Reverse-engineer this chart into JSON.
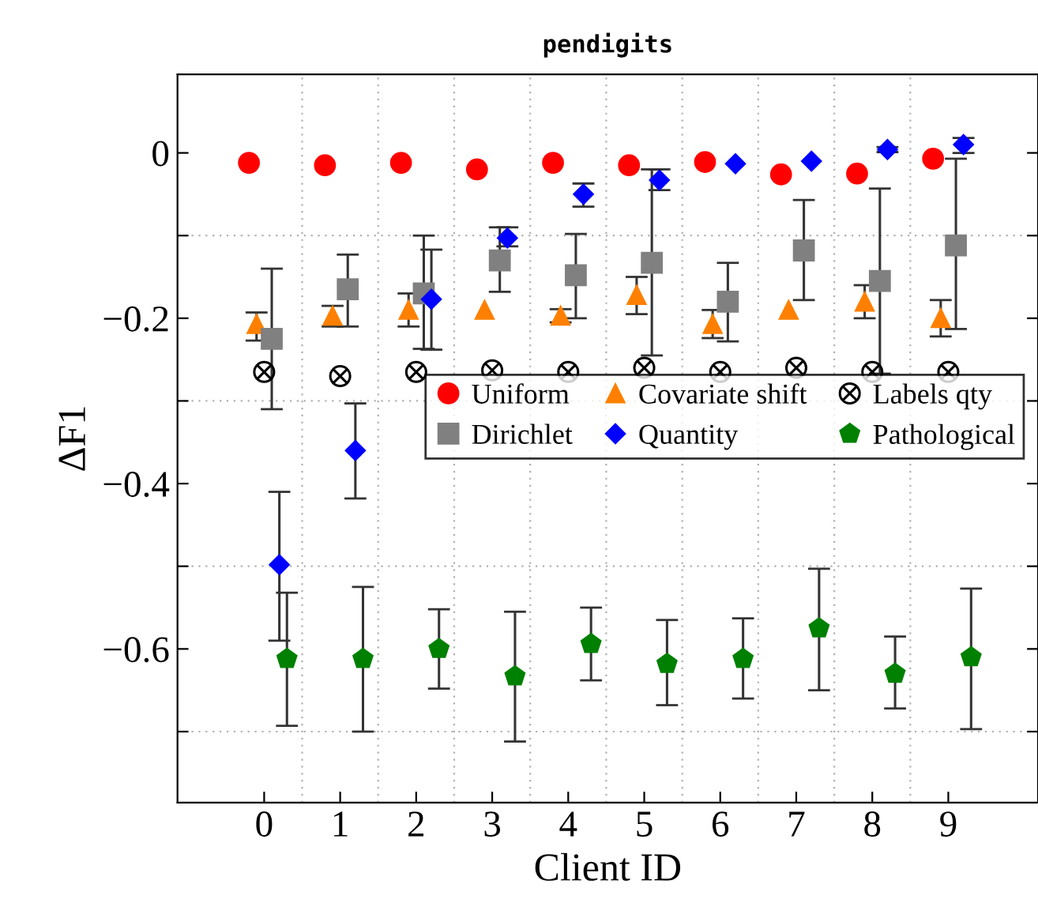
{
  "chart_data": {
    "type": "scatter",
    "title": "pendigits",
    "xlabel": "Client ID",
    "ylabel": "ΔF1",
    "xlim": [
      -1.14,
      10.18
    ],
    "ylim": [
      -0.786,
      0.095
    ],
    "xticks": [
      0,
      1,
      2,
      3,
      4,
      5,
      6,
      7,
      8,
      9,
      {
        "value": 0.5,
        "label": null
      },
      {
        "value": 1.5,
        "label": null
      },
      {
        "value": 2.5,
        "label": null
      },
      {
        "value": 3.5,
        "label": null
      },
      {
        "value": 4.5,
        "label": null
      },
      {
        "value": 5.5,
        "label": null
      },
      {
        "value": 6.5,
        "label": null
      },
      {
        "value": 7.5,
        "label": null
      },
      {
        "value": 8.5,
        "label": null
      }
    ],
    "yticks": [
      {
        "value": 0,
        "label": "0"
      },
      {
        "value": -0.2,
        "label": "−0.2"
      },
      {
        "value": -0.4,
        "label": "−0.4"
      },
      {
        "value": -0.6,
        "label": "−0.6"
      },
      {
        "value": -0.1,
        "label": null
      },
      {
        "value": -0.3,
        "label": null
      },
      {
        "value": -0.5,
        "label": null
      },
      {
        "value": -0.7,
        "label": null
      }
    ],
    "grid": true,
    "legend": "right",
    "series": [
      {
        "name": "Uniform",
        "color": "#ff0000",
        "marker": "circle",
        "x": [
          -0.2,
          0.8,
          1.8,
          2.8,
          3.8,
          4.8,
          5.8,
          6.8,
          7.8,
          8.8
        ],
        "values": [
          -0.012,
          -0.015,
          -0.012,
          -0.02,
          -0.012,
          -0.015,
          -0.011,
          -0.026,
          -0.025,
          -0.007
        ]
      },
      {
        "name": "Covariate shift",
        "color": "#ff8000",
        "marker": "triangle",
        "x": [
          -0.1,
          0.9,
          1.9,
          2.9,
          3.9,
          4.9,
          5.9,
          6.9,
          7.9,
          8.9
        ],
        "values": [
          -0.207,
          -0.197,
          -0.19,
          -0.19,
          -0.197,
          -0.172,
          -0.207,
          -0.19,
          -0.18,
          -0.2
        ],
        "errors": [
          [
            -0.227,
            -0.193
          ],
          [
            -0.21,
            -0.185
          ],
          [
            -0.21,
            -0.17
          ],
          null,
          [
            -0.205,
            -0.189
          ],
          [
            -0.195,
            -0.15
          ],
          [
            -0.224,
            -0.19
          ],
          null,
          [
            -0.2,
            -0.16
          ],
          [
            -0.222,
            -0.178
          ]
        ]
      },
      {
        "name": "Labels qty",
        "color": "#000000",
        "marker": "cross",
        "x": [
          0,
          1,
          2,
          3,
          4,
          5,
          6,
          7,
          8,
          9
        ],
        "values": [
          -0.265,
          -0.27,
          -0.265,
          -0.263,
          -0.265,
          -0.26,
          -0.265,
          -0.26,
          -0.265,
          -0.265
        ]
      },
      {
        "name": "Dirichlet",
        "color": "#808080",
        "marker": "square",
        "x": [
          0.1,
          1.1,
          2.1,
          3.1,
          4.1,
          5.1,
          6.1,
          7.1,
          8.1,
          9.1
        ],
        "values": [
          -0.225,
          -0.165,
          -0.17,
          -0.13,
          -0.148,
          -0.133,
          -0.18,
          -0.118,
          -0.155,
          -0.112
        ],
        "errors": [
          [
            -0.31,
            -0.14
          ],
          [
            -0.21,
            -0.123
          ],
          [
            -0.237,
            -0.1
          ],
          [
            -0.168,
            -0.09
          ],
          [
            -0.2,
            -0.098
          ],
          [
            -0.245,
            -0.02
          ],
          [
            -0.228,
            -0.133
          ],
          [
            -0.178,
            -0.057
          ],
          [
            -0.267,
            -0.043
          ],
          [
            -0.213,
            -0.007
          ]
        ]
      },
      {
        "name": "Quantity",
        "color": "#0000ff",
        "marker": "diamond",
        "x": [
          0.2,
          1.2,
          2.2,
          3.2,
          4.2,
          5.2,
          6.2,
          7.2,
          8.2,
          9.2
        ],
        "values": [
          -0.498,
          -0.36,
          -0.177,
          -0.103,
          -0.05,
          -0.033,
          -0.013,
          -0.01,
          0.004,
          0.01
        ],
        "errors": [
          [
            -0.59,
            -0.41
          ],
          [
            -0.418,
            -0.303
          ],
          [
            -0.238,
            -0.117
          ],
          [
            -0.113,
            -0.09
          ],
          [
            -0.065,
            -0.037
          ],
          [
            -0.045,
            -0.02
          ],
          null,
          null,
          [
            0.001,
            0.007
          ],
          [
            0,
            0.018
          ]
        ]
      },
      {
        "name": "Pathological",
        "color": "#008000",
        "x": [
          0.3,
          1.3,
          2.3,
          3.3,
          4.3,
          5.3,
          6.3,
          7.3,
          8.3,
          9.3
        ],
        "values": [
          -0.612,
          -0.612,
          -0.6,
          -0.633,
          -0.594,
          -0.618,
          -0.612,
          -0.575,
          -0.63,
          -0.61
        ],
        "errors": [
          [
            -0.693,
            -0.532
          ],
          [
            -0.7,
            -0.525
          ],
          [
            -0.648,
            -0.552
          ],
          [
            -0.712,
            -0.555
          ],
          [
            -0.638,
            -0.55
          ],
          [
            -0.668,
            -0.565
          ],
          [
            -0.66,
            -0.563
          ],
          [
            -0.65,
            -0.503
          ],
          [
            -0.672,
            -0.585
          ],
          [
            -0.697,
            -0.527
          ]
        ]
      }
    ]
  }
}
